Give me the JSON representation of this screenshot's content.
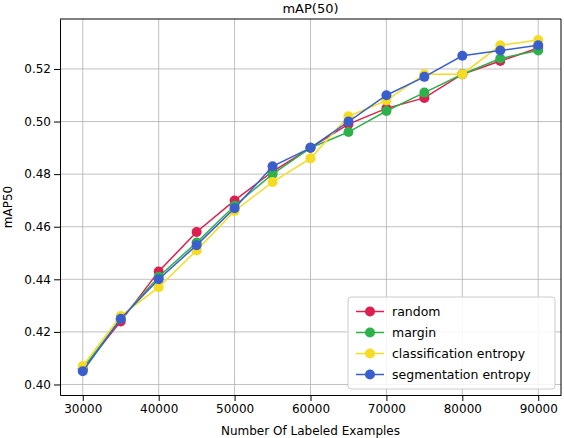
{
  "chart_data": {
    "type": "line",
    "title": "mAP(50)",
    "x_label": "Number Of Labeled Examples",
    "y_label": "mAP50",
    "x": [
      30000,
      35000,
      40000,
      45000,
      50000,
      55000,
      60000,
      65000,
      70000,
      75000,
      80000,
      85000,
      90000
    ],
    "series": [
      {
        "name": "random",
        "color": "#dc1f4e",
        "marker": "circle",
        "values": [
          0.406,
          0.424,
          0.443,
          0.458,
          0.47,
          0.481,
          0.49,
          0.499,
          0.505,
          0.509,
          0.518,
          0.523,
          0.528
        ]
      },
      {
        "name": "margin",
        "color": "#2eb04b",
        "marker": "circle",
        "values": [
          0.406,
          0.425,
          0.441,
          0.454,
          0.468,
          0.48,
          0.49,
          0.496,
          0.504,
          0.511,
          0.518,
          0.524,
          0.527
        ]
      },
      {
        "name": "classification entropy",
        "color": "#f5dc24",
        "marker": "circle",
        "values": [
          0.407,
          0.426,
          0.437,
          0.451,
          0.466,
          0.477,
          0.486,
          0.502,
          0.508,
          0.518,
          0.518,
          0.529,
          0.531
        ]
      },
      {
        "name": "segmentation entropy",
        "color": "#3a5fcd",
        "marker": "circle",
        "values": [
          0.405,
          0.425,
          0.44,
          0.453,
          0.467,
          0.483,
          0.49,
          0.5,
          0.51,
          0.517,
          0.525,
          0.527,
          0.529
        ]
      }
    ],
    "xlim": [
      27000,
      93000
    ],
    "ylim": [
      0.396,
      0.539
    ],
    "xticks": [
      30000,
      40000,
      50000,
      60000,
      70000,
      80000,
      90000
    ],
    "yticks": [
      {
        "value": 0.4,
        "label": "0.40"
      },
      {
        "value": 0.42,
        "label": "0.42"
      },
      {
        "value": 0.44,
        "label": "0.44"
      },
      {
        "value": 0.46,
        "label": "0.46"
      },
      {
        "value": 0.48,
        "label": "0.48"
      },
      {
        "value": 0.5,
        "label": "0.50"
      },
      {
        "value": 0.52,
        "label": "0.52"
      }
    ],
    "grid": true,
    "legend": "lower right"
  }
}
